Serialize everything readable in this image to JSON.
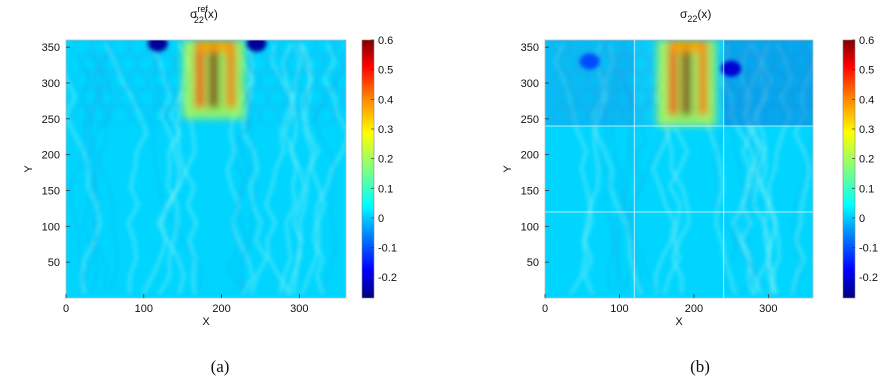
{
  "chart_data": [
    {
      "type": "heatmap",
      "title": "σ",
      "title_sup": "ref",
      "title_sub": "22",
      "title_arg": "(x)",
      "xlabel": "X",
      "ylabel": "Y",
      "xlim": [
        0,
        360
      ],
      "ylim": [
        0,
        360
      ],
      "xticks": [
        0,
        100,
        200,
        300
      ],
      "yticks": [
        50,
        100,
        150,
        200,
        250,
        300,
        350
      ],
      "colorbar": {
        "min": -0.27,
        "max": 0.6,
        "ticks": [
          "0.6",
          "0.5",
          "0.4",
          "0.3",
          "0.2",
          "0.1",
          "0",
          "-0.1",
          "-0.2"
        ],
        "tick_values": [
          0.6,
          0.5,
          0.4,
          0.3,
          0.2,
          0.1,
          0,
          -0.1,
          -0.2
        ]
      },
      "caption": "(a)",
      "background_value": 0.02,
      "high_stress_band": {
        "x_range": [
          150,
          230
        ],
        "y_range": [
          250,
          360
        ],
        "peak": 0.6
      },
      "low_stress_spots": [
        {
          "x": 118,
          "y": 355,
          "value": -0.25
        },
        {
          "x": 245,
          "y": 355,
          "value": -0.25
        }
      ],
      "grid": false
    },
    {
      "type": "heatmap",
      "title": "σ",
      "title_sup": "",
      "title_sub": "22",
      "title_arg": "(x)",
      "xlabel": "X",
      "ylabel": "Y",
      "xlim": [
        0,
        360
      ],
      "ylim": [
        0,
        360
      ],
      "xticks": [
        0,
        100,
        200,
        300
      ],
      "yticks": [
        50,
        100,
        150,
        200,
        250,
        300,
        350
      ],
      "colorbar": {
        "min": -0.27,
        "max": 0.6,
        "ticks": [
          "0.6",
          "0.5",
          "0.4",
          "0.3",
          "0.2",
          "0.1",
          "0",
          "-0.1",
          "-0.2"
        ],
        "tick_values": [
          0.6,
          0.5,
          0.4,
          0.3,
          0.2,
          0.1,
          0,
          -0.1,
          -0.2
        ]
      },
      "caption": "(b)",
      "background_value": 0.02,
      "subdomain_boundaries": {
        "x": [
          120,
          240
        ],
        "y": [
          120,
          240
        ]
      },
      "high_stress_band": {
        "x_range": [
          150,
          230
        ],
        "y_range": [
          240,
          360
        ],
        "peak": 0.6
      },
      "low_stress_spots": [
        {
          "x": 250,
          "y": 320,
          "value": -0.2
        },
        {
          "x": 60,
          "y": 330,
          "value": -0.1
        }
      ],
      "grid": false
    }
  ]
}
